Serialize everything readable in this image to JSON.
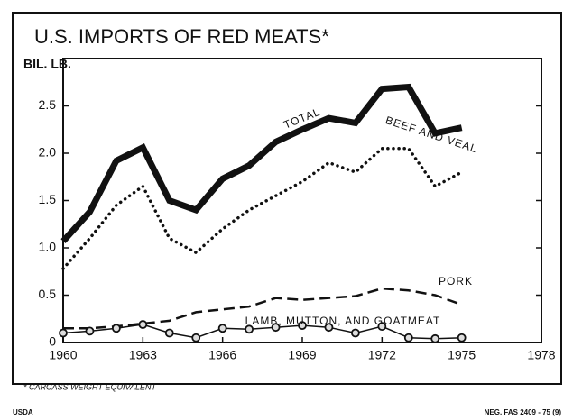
{
  "chart_data": {
    "type": "line",
    "title": "U.S. IMPORTS OF RED MEATS*",
    "y_label": "BIL. LB.",
    "footnote": "* CARCASS WEIGHT EQUIVALENT",
    "source": "USDA",
    "reference": "NEG. FAS 2409 - 75 (9)",
    "x": [
      1960,
      1961,
      1962,
      1963,
      1964,
      1965,
      1966,
      1967,
      1968,
      1969,
      1970,
      1971,
      1972,
      1973,
      1974,
      1975
    ],
    "series": [
      {
        "name": "TOTAL",
        "color": "#111111",
        "style": "solid",
        "values": [
          1.07,
          1.38,
          1.92,
          2.06,
          1.5,
          1.4,
          1.73,
          1.87,
          2.12,
          2.25,
          2.37,
          2.32,
          2.68,
          2.7,
          2.21,
          2.27
        ]
      },
      {
        "name": "BEEF AND VEAL",
        "color": "#111111",
        "style": "dotted",
        "values": [
          0.78,
          1.1,
          1.45,
          1.65,
          1.1,
          0.95,
          1.2,
          1.4,
          1.55,
          1.7,
          1.9,
          1.8,
          2.05,
          2.05,
          1.65,
          1.8
        ]
      },
      {
        "name": "PORK",
        "color": "#111111",
        "style": "dashed",
        "values": [
          0.15,
          0.15,
          0.17,
          0.2,
          0.23,
          0.32,
          0.35,
          0.38,
          0.47,
          0.45,
          0.47,
          0.49,
          0.57,
          0.55,
          0.5,
          0.4
        ]
      },
      {
        "name": "LAMB, MUTTON, AND GOATMEAT",
        "color": "#111111",
        "style": "circles",
        "values": [
          0.1,
          0.12,
          0.15,
          0.19,
          0.1,
          0.05,
          0.15,
          0.14,
          0.16,
          0.18,
          0.16,
          0.1,
          0.17,
          0.05,
          0.04,
          0.05
        ]
      }
    ],
    "xlim": [
      1960,
      1978
    ],
    "xticks": [
      1960,
      1963,
      1966,
      1969,
      1972,
      1975,
      1978
    ],
    "ylim": [
      0,
      3
    ],
    "yticks": [
      0,
      0.5,
      {
        "value": 1,
        "label": "1.0"
      },
      1.5,
      {
        "value": 2,
        "label": "2.0"
      },
      2.5
    ],
    "grid": false
  }
}
